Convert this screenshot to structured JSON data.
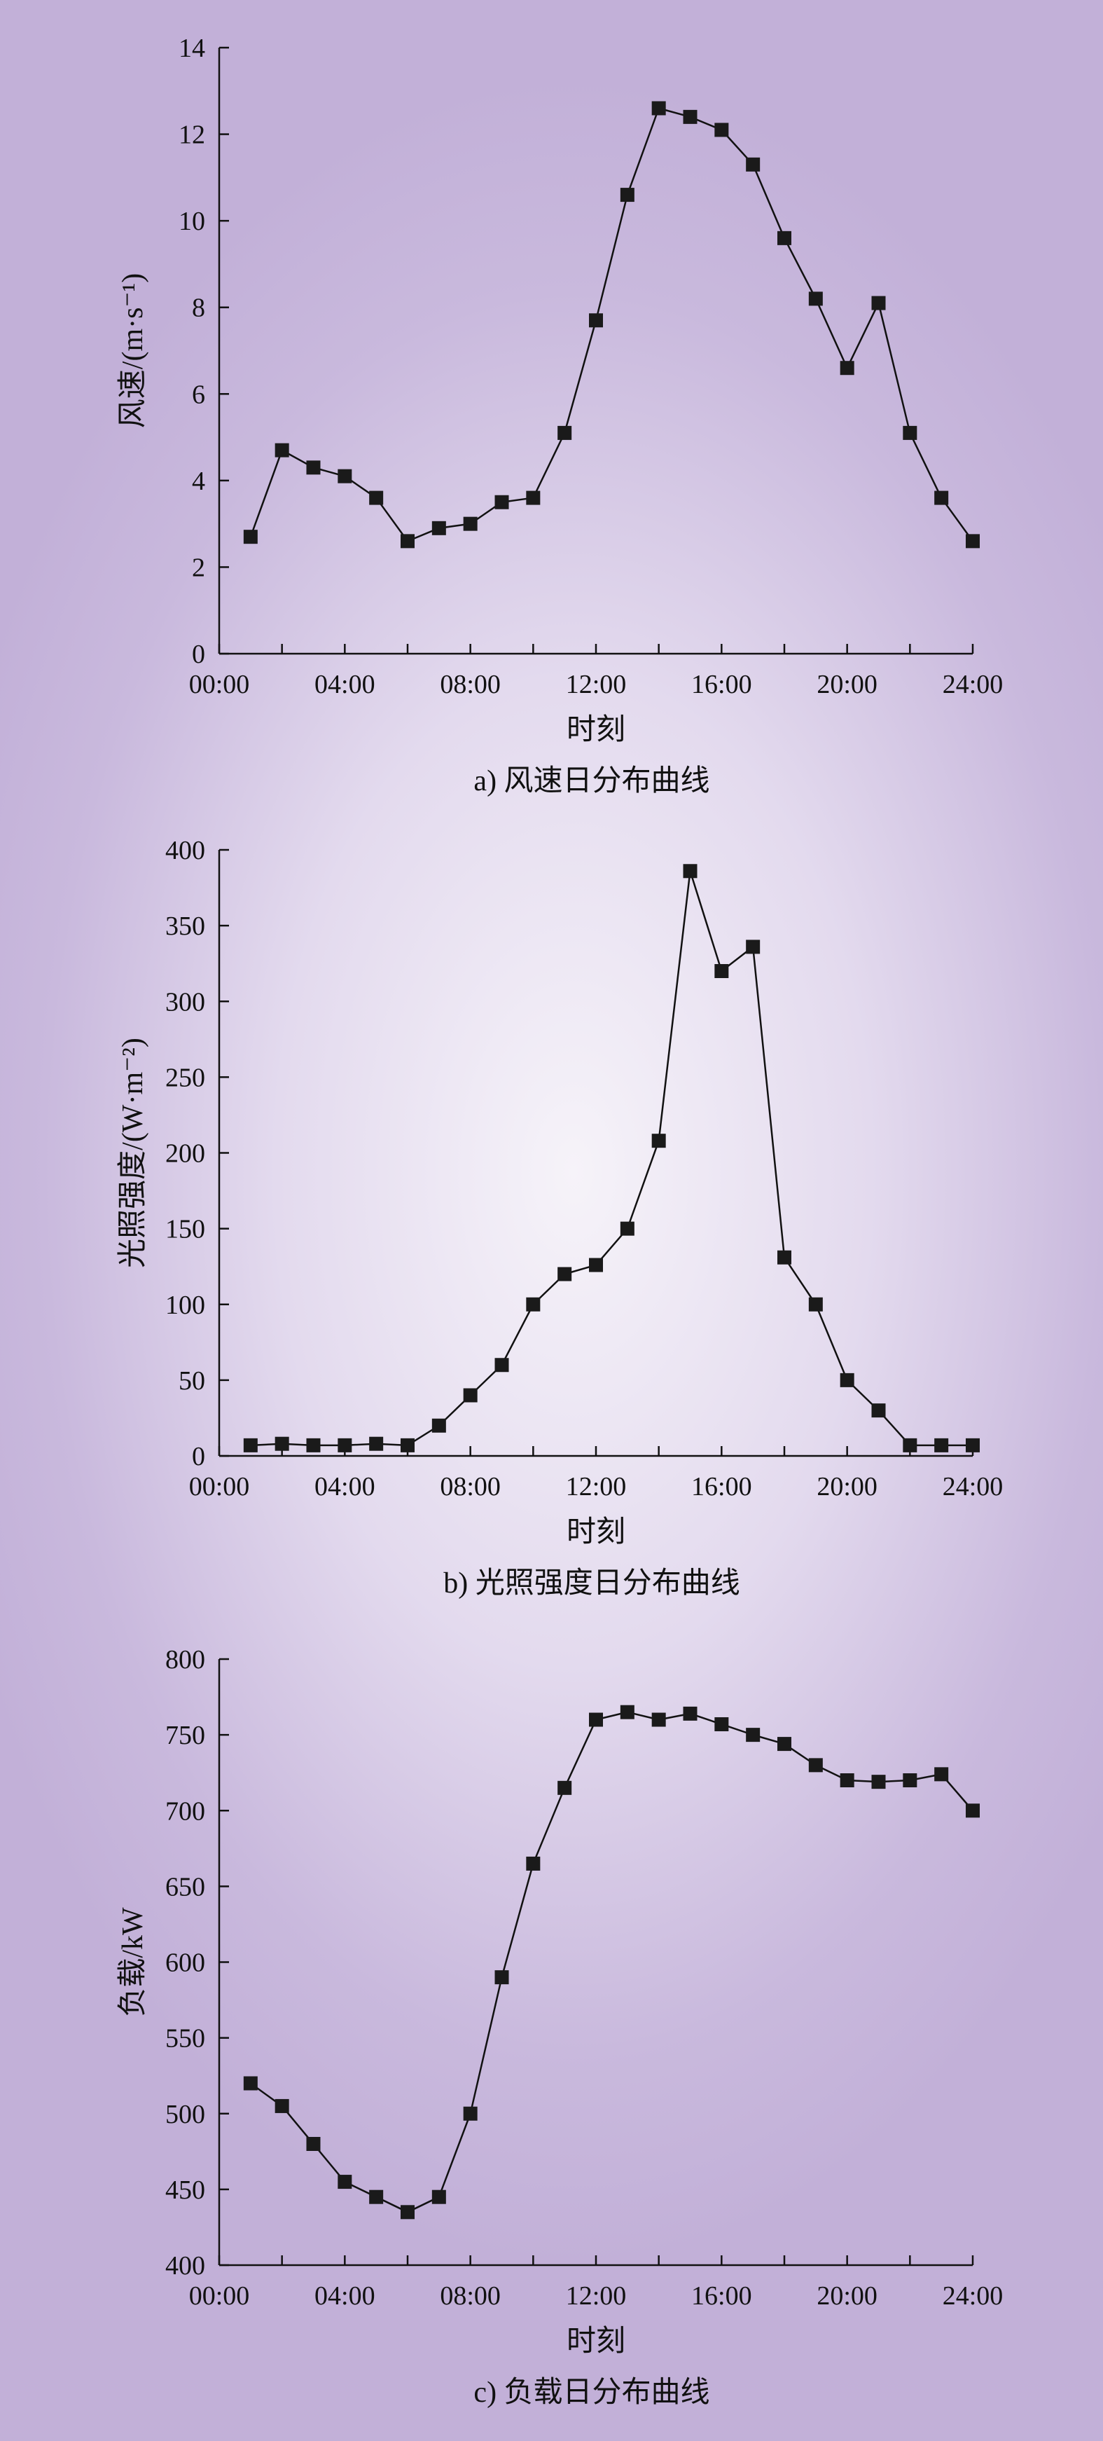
{
  "chart_data": [
    {
      "type": "line",
      "caption": "a) 风速日分布曲线",
      "xlabel": "时刻",
      "ylabel": "风速/(m·s⁻¹)",
      "x_ticks": [
        "00:00",
        "04:00",
        "08:00",
        "12:00",
        "16:00",
        "20:00",
        "24:00"
      ],
      "xlim": [
        0,
        24
      ],
      "ylim": [
        0,
        14
      ],
      "y_ticks": [
        0,
        2,
        4,
        6,
        8,
        10,
        12,
        14
      ],
      "x": [
        1,
        2,
        3,
        4,
        5,
        6,
        7,
        8,
        9,
        10,
        11,
        12,
        13,
        14,
        15,
        16,
        17,
        18,
        19,
        20,
        21,
        22,
        23,
        24
      ],
      "series": [
        {
          "values": [
            2.7,
            4.7,
            4.3,
            4.1,
            3.6,
            2.6,
            2.9,
            3.0,
            3.5,
            3.6,
            5.1,
            7.7,
            10.6,
            12.6,
            12.4,
            12.1,
            11.3,
            9.6,
            8.2,
            6.6,
            8.1,
            5.1,
            3.6,
            2.6
          ]
        }
      ]
    },
    {
      "type": "line",
      "caption": "b) 光照强度日分布曲线",
      "xlabel": "时刻",
      "ylabel": "光照强度/(W·m⁻²)",
      "x_ticks": [
        "00:00",
        "04:00",
        "08:00",
        "12:00",
        "16:00",
        "20:00",
        "24:00"
      ],
      "xlim": [
        0,
        24
      ],
      "ylim": [
        0,
        400
      ],
      "y_ticks": [
        0,
        50,
        100,
        150,
        200,
        250,
        300,
        350,
        400
      ],
      "x": [
        1,
        2,
        3,
        4,
        5,
        6,
        7,
        8,
        9,
        10,
        11,
        12,
        13,
        14,
        15,
        16,
        17,
        18,
        19,
        20,
        21,
        22,
        23,
        24
      ],
      "series": [
        {
          "values": [
            7,
            8,
            7,
            7,
            8,
            7,
            20,
            40,
            60,
            100,
            120,
            126,
            150,
            208,
            386,
            320,
            336,
            131,
            100,
            50,
            30,
            7,
            7,
            7
          ]
        }
      ]
    },
    {
      "type": "line",
      "caption": "c) 负载日分布曲线",
      "xlabel": "时刻",
      "ylabel": "负载/kW",
      "x_ticks": [
        "00:00",
        "04:00",
        "08:00",
        "12:00",
        "16:00",
        "20:00",
        "24:00"
      ],
      "xlim": [
        0,
        24
      ],
      "ylim": [
        400,
        800
      ],
      "y_ticks": [
        400,
        450,
        500,
        550,
        600,
        650,
        700,
        750,
        800
      ],
      "x": [
        1,
        2,
        3,
        4,
        5,
        6,
        7,
        8,
        9,
        10,
        11,
        12,
        13,
        14,
        15,
        16,
        17,
        18,
        19,
        20,
        21,
        22,
        23,
        24
      ],
      "series": [
        {
          "values": [
            520,
            505,
            480,
            455,
            445,
            435,
            445,
            500,
            590,
            665,
            715,
            760,
            765,
            760,
            764,
            757,
            750,
            744,
            730,
            720,
            719,
            720,
            724,
            700
          ]
        }
      ]
    }
  ],
  "style": {
    "line_color": "#111111",
    "marker_color": "#1a1a1a",
    "axis_color": "#111111"
  }
}
